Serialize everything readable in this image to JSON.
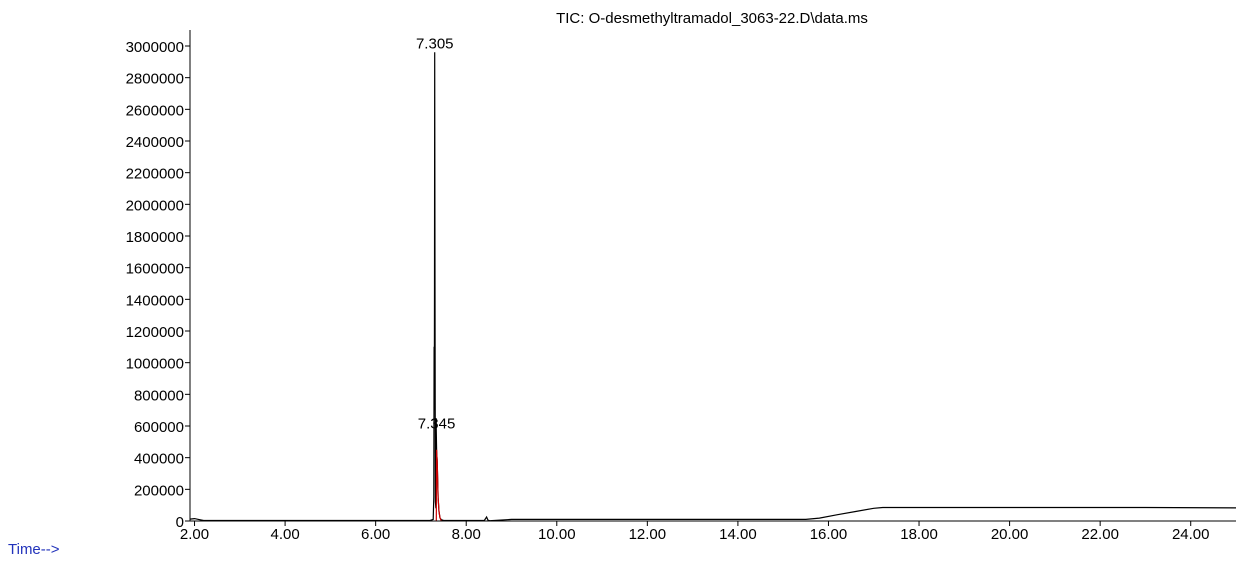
{
  "chart_data": {
    "type": "line",
    "title": "TIC: O-desmethyltramadol_3063-22.D\\data.ms",
    "xlabel": "Time-->",
    "ylabel": "",
    "xlim": [
      1.9,
      25.0
    ],
    "ylim": [
      0,
      3000000
    ],
    "x_ticks": [
      2.0,
      4.0,
      6.0,
      8.0,
      10.0,
      12.0,
      14.0,
      16.0,
      18.0,
      20.0,
      22.0,
      24.0
    ],
    "x_tick_labels": [
      "2.00",
      "4.00",
      "6.00",
      "8.00",
      "10.00",
      "12.00",
      "14.00",
      "16.00",
      "18.00",
      "20.00",
      "22.00",
      "24.00"
    ],
    "y_ticks": [
      0,
      200000,
      400000,
      600000,
      800000,
      1000000,
      1200000,
      1400000,
      1600000,
      1800000,
      2000000,
      2200000,
      2400000,
      2600000,
      2800000,
      3000000
    ],
    "y_tick_labels": [
      "0",
      "200000",
      "400000",
      "600000",
      "800000",
      "1000000",
      "1200000",
      "1400000",
      "1600000",
      "1800000",
      "2000000",
      "2200000",
      "2400000",
      "2600000",
      "2800000",
      "3000000"
    ],
    "grid": false,
    "series": [
      {
        "color": "#000000",
        "x": [
          1.9,
          2.0,
          2.1,
          2.2,
          7.2,
          7.27,
          7.285,
          7.29,
          7.295,
          7.3,
          7.305,
          7.31,
          7.315,
          7.32,
          7.33,
          7.335,
          7.34,
          7.345,
          7.35,
          7.36,
          7.38,
          7.4,
          7.42,
          7.45,
          7.5,
          8.4,
          8.45,
          8.48,
          8.52,
          8.9,
          9.0,
          15.5,
          15.8,
          16.2,
          16.6,
          17.0,
          17.2,
          19.0,
          21.0,
          23.0,
          25.0
        ],
        "y": [
          12000,
          15000,
          9000,
          3000,
          3000,
          10000,
          150000,
          1100000,
          700000,
          1500000,
          2960000,
          1500000,
          750000,
          120000,
          80000,
          650000,
          560000,
          450000,
          420000,
          380000,
          150000,
          60000,
          20000,
          8000,
          3000,
          3000,
          25000,
          5000,
          2000,
          8000,
          10000,
          10000,
          18000,
          40000,
          60000,
          80000,
          85000,
          85000,
          85000,
          85000,
          83000
        ]
      },
      {
        "color": "#cc0000",
        "x": [
          7.34,
          7.345,
          7.35,
          7.36,
          7.38,
          7.4,
          7.42,
          7.45
        ],
        "y": [
          0,
          450000,
          420000,
          380000,
          150000,
          60000,
          20000,
          0
        ]
      }
    ],
    "annotations": [
      {
        "label": "7.305",
        "x": 7.305,
        "y": 2960000
      },
      {
        "label": "7.345",
        "x": 7.345,
        "y": 560000
      }
    ]
  }
}
